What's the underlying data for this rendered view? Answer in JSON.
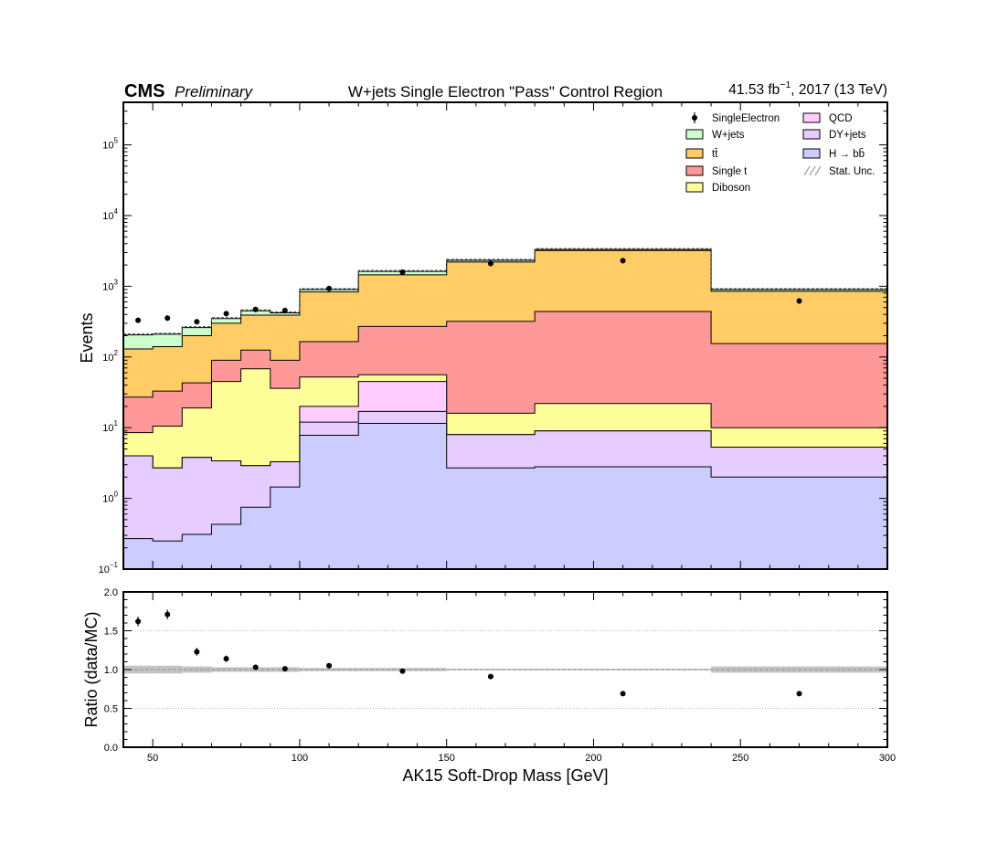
{
  "header": {
    "cms": "CMS",
    "preliminary": "Preliminary",
    "title": "W+jets Single Electron \"Pass\" Control Region",
    "lumi_value": "41.53 fb",
    "lumi_exp": "−1",
    "lumi_rest": ", 2017 (13 TeV)"
  },
  "chart_data": [
    {
      "type": "area",
      "subtype": "stacked-step-histogram",
      "ylabel": "Events",
      "yscale": "log",
      "ylim": [
        0.1,
        400000
      ],
      "xlim": [
        40,
        300
      ],
      "y_tick_labels": [
        {
          "v": 0.1,
          "base": "10",
          "exp": "−1"
        },
        {
          "v": 1,
          "base": "10",
          "exp": "0"
        },
        {
          "v": 10,
          "base": "10",
          "exp": "1"
        },
        {
          "v": 100,
          "base": "10",
          "exp": "2"
        },
        {
          "v": 1000,
          "base": "10",
          "exp": "3"
        },
        {
          "v": 10000,
          "base": "10",
          "exp": "4"
        },
        {
          "v": 100000,
          "base": "10",
          "exp": "5"
        }
      ],
      "bin_edges": [
        40,
        50,
        60,
        70,
        80,
        90,
        100,
        120,
        150,
        180,
        240,
        300
      ],
      "stack_order": [
        "H → bb̄",
        "DY+jets",
        "QCD",
        "Diboson",
        "Single t",
        "tt̄",
        "W+jets"
      ],
      "series_cumulative": [
        {
          "name": "H → bb̄",
          "color": "#ccccff",
          "values": [
            0.27,
            0.25,
            0.31,
            0.43,
            0.75,
            1.45,
            7.8,
            11.5,
            2.7,
            2.8,
            2.0
          ]
        },
        {
          "name": "DY+jets",
          "color": "#e6ccff",
          "values": [
            4.0,
            2.7,
            3.8,
            3.4,
            2.9,
            3.3,
            12.0,
            17.0,
            8.0,
            9.0,
            5.3
          ]
        },
        {
          "name": "QCD",
          "color": "#ffccff",
          "values": [
            4.0,
            2.7,
            3.8,
            3.4,
            2.9,
            3.3,
            20.0,
            45.0,
            8.0,
            9.0,
            5.3
          ]
        },
        {
          "name": "Diboson",
          "color": "#ffff99",
          "values": [
            8.5,
            10.5,
            19.0,
            45.0,
            68.0,
            36.0,
            52.0,
            56.0,
            16.0,
            22.0,
            10.0
          ]
        },
        {
          "name": "Single t",
          "color": "#ff9999",
          "values": [
            27.0,
            33.0,
            43.0,
            90.0,
            125.0,
            90.0,
            165.0,
            270.0,
            320.0,
            440.0,
            155.0
          ]
        },
        {
          "name": "tt̄",
          "color": "#ffcc66",
          "values": [
            130.0,
            140.0,
            200.0,
            300.0,
            390.0,
            390.0,
            830.0,
            1450.0,
            2200.0,
            3200.0,
            850.0
          ]
        },
        {
          "name": "W+jets",
          "color": "#ccffcc",
          "values": [
            205.0,
            210.0,
            260.0,
            350.0,
            450.0,
            420.0,
            900.0,
            1620.0,
            2330.0,
            3320.0,
            900.0
          ]
        }
      ],
      "data_points": {
        "name": "SingleElectron",
        "x": [
          45,
          55,
          65,
          75,
          85,
          95,
          110,
          135,
          165,
          210,
          270
        ],
        "y": [
          330,
          355,
          315,
          410,
          470,
          455,
          930,
          1580,
          2100,
          2300,
          620
        ]
      },
      "legend": {
        "placement": "top-right",
        "columns": [
          [
            "SingleElectron",
            "W+jets",
            "tt̄",
            "Single t",
            "Diboson"
          ],
          [
            "QCD",
            "DY+jets",
            "H → bb̄",
            "Stat. Unc."
          ]
        ]
      }
    },
    {
      "type": "scatter",
      "ylabel": "Ratio (data/MC)",
      "xlabel": "AK15 Soft-Drop Mass [GeV]",
      "xlim": [
        40,
        300
      ],
      "ylim": [
        0.0,
        2.0
      ],
      "x_ticks": [
        "50",
        "100",
        "150",
        "200",
        "250",
        "300"
      ],
      "y_ticks": [
        "0.0",
        "0.5",
        "1.0",
        "1.5",
        "2.0"
      ],
      "x": [
        45,
        55,
        65,
        75,
        85,
        95,
        110,
        135,
        165,
        210,
        270
      ],
      "y": [
        1.62,
        1.71,
        1.23,
        1.14,
        1.03,
        1.01,
        1.05,
        0.98,
        0.91,
        0.69,
        0.69
      ],
      "yerr": [
        0.06,
        0.06,
        0.05,
        0.04,
        0.03,
        0.03,
        0.02,
        0.02,
        0.01,
        0.01,
        0.02
      ],
      "unc_band_halfwidth": [
        0.05,
        0.05,
        0.04,
        0.03,
        0.03,
        0.03,
        0.02,
        0.02,
        0.01,
        0.01,
        0.04
      ]
    }
  ]
}
